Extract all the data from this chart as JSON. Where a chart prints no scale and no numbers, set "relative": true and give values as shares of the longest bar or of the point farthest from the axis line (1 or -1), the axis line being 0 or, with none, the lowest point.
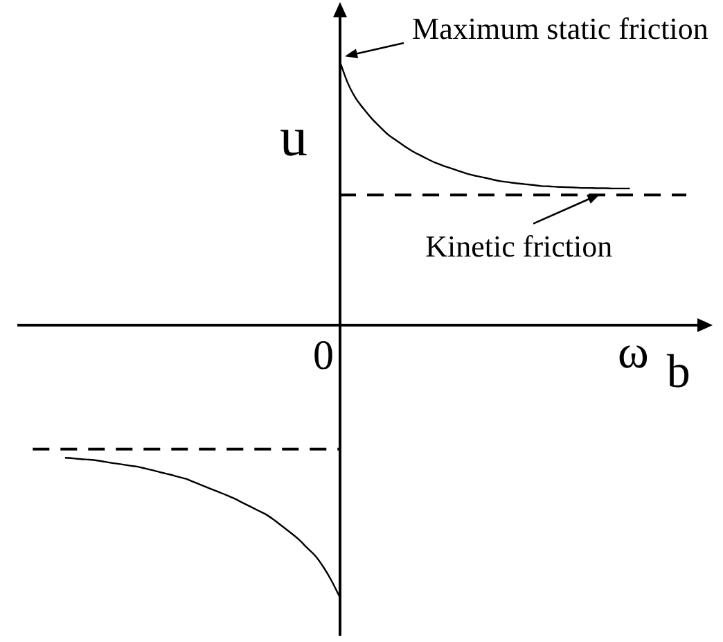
{
  "chart_data": {
    "type": "line",
    "relative": true,
    "xlabel": "ω$_{b}$",
    "ylabel": "u",
    "marker": "none",
    "line_style": "solid",
    "categories": [
      null,
      null,
      null,
      null,
      null,
      null,
      null,
      null,
      null,
      null,
      null,
      null,
      null,
      null,
      null,
      null,
      null,
      null,
      null,
      null,
      null,
      null,
      null,
      null,
      null,
      null,
      null,
      null,
      null,
      null,
      null,
      null,
      null,
      null,
      null,
      null,
      null,
      null,
      null,
      null,
      null,
      null,
      null,
      null,
      null,
      null,
      null,
      null,
      null,
      null,
      null,
      null,
      null,
      null,
      null,
      null,
      null,
      null,
      null,
      null,
      null,
      null,
      null,
      null,
      null,
      null,
      null,
      null,
      null,
      null,
      null,
      null,
      null,
      null,
      null,
      null,
      null,
      null,
      null,
      null,
      null,
      null,
      null,
      null,
      null,
      null,
      null
    ],
    "series": [
      {
        "color": "#000000",
        "values": [
          null,
          null,
          null,
          null,
          null,
          null,
          null,
          null,
          null,
          null,
          null,
          null,
          null,
          null,
          null,
          null,
          null,
          null,
          null,
          null,
          null,
          null,
          null,
          null,
          null,
          null,
          null,
          null,
          null,
          null,
          null,
          null,
          null,
          null,
          null,
          null,
          null,
          null,
          null,
          null,
          0.983,
          0.901,
          0.843,
          0.803,
          0.767,
          0.737,
          0.708,
          0.687,
          0.666,
          0.647,
          0.631,
          0.616,
          0.602,
          0.591,
          0.581,
          0.571,
          0.561,
          0.554,
          0.548,
          0.541,
          0.535,
          0.531,
          0.527,
          0.524,
          0.521,
          0.517,
          0.516,
          0.514,
          0.513,
          0.512,
          0.51,
          0.51,
          0.509,
          0.509,
          0.508,
          0.508,
          0.508,
          null,
          null,
          null,
          null,
          null,
          null,
          null,
          null,
          null,
          null
        ]
      },
      {
        "color": "#000000",
        "line_style": "dashed",
        "values": [
          null,
          null,
          null,
          null,
          null,
          null,
          null,
          null,
          null,
          null,
          null,
          null,
          null,
          null,
          null,
          null,
          null,
          null,
          null,
          null,
          null,
          null,
          null,
          null,
          null,
          null,
          null,
          null,
          null,
          null,
          null,
          null,
          null,
          null,
          null,
          null,
          null,
          null,
          null,
          null,
          0.484,
          0.484,
          0.484,
          0.484,
          0.484,
          0.484,
          0.484,
          0.484,
          0.484,
          0.484,
          0.484,
          0.484,
          0.484,
          0.484,
          0.484,
          0.484,
          0.484,
          0.484,
          0.484,
          0.484,
          0.484,
          0.484,
          0.484,
          0.484,
          0.484,
          0.484,
          0.484,
          0.484,
          0.484,
          0.484,
          0.484,
          0.484,
          0.484,
          0.484,
          0.484,
          0.484,
          0.484,
          0.484,
          0.484,
          0.484,
          0.484,
          0.484,
          0.484,
          0.484,
          null,
          null,
          null
        ]
      },
      {
        "color": "#000000",
        "line_style": "dashed",
        "values": [
          null,
          null,
          -0.456,
          -0.456,
          -0.456,
          -0.456,
          -0.456,
          -0.456,
          -0.456,
          -0.456,
          -0.456,
          -0.456,
          -0.456,
          -0.456,
          -0.456,
          -0.456,
          -0.456,
          -0.456,
          -0.456,
          -0.456,
          -0.456,
          -0.456,
          -0.456,
          -0.456,
          -0.456,
          -0.456,
          -0.456,
          -0.456,
          -0.456,
          -0.456,
          -0.456,
          -0.456,
          -0.456,
          -0.456,
          -0.456,
          -0.456,
          -0.456,
          -0.456,
          -0.456,
          -0.456,
          -0.456,
          null,
          null,
          null,
          null,
          null,
          null,
          null,
          null,
          null,
          null,
          null,
          null,
          null,
          null,
          null,
          null,
          null,
          null,
          null,
          null,
          null,
          null,
          null,
          null,
          null,
          null,
          null,
          null,
          null,
          null,
          null,
          null,
          null,
          null,
          null,
          null,
          null,
          null,
          null,
          null,
          null,
          null,
          null,
          null,
          null,
          null
        ]
      },
      {
        "color": "#000000",
        "values": [
          null,
          null,
          null,
          null,
          null,
          null,
          -0.488,
          -0.49,
          -0.493,
          -0.495,
          -0.498,
          -0.503,
          -0.508,
          -0.512,
          -0.517,
          -0.521,
          -0.528,
          -0.535,
          -0.543,
          -0.55,
          -0.558,
          -0.566,
          -0.578,
          -0.59,
          -0.602,
          -0.614,
          -0.626,
          -0.639,
          -0.654,
          -0.669,
          -0.684,
          -0.699,
          -0.72,
          -0.743,
          -0.766,
          -0.791,
          -0.821,
          -0.85,
          -0.891,
          -0.941,
          -1,
          null,
          null,
          null,
          null,
          null,
          null,
          null,
          null,
          null,
          null,
          null,
          null,
          null,
          null,
          null,
          null,
          null,
          null,
          null,
          null,
          null,
          null,
          null,
          null,
          null,
          null,
          null,
          null,
          null,
          null,
          null,
          null,
          null,
          null,
          null,
          null,
          null,
          null,
          null,
          null,
          null,
          null,
          null,
          null,
          null,
          null
        ]
      }
    ],
    "annotations": [
      "Maximum static friction",
      {
        "text": "Kinetic friction",
        "y": 0.484
      },
      "0"
    ]
  }
}
